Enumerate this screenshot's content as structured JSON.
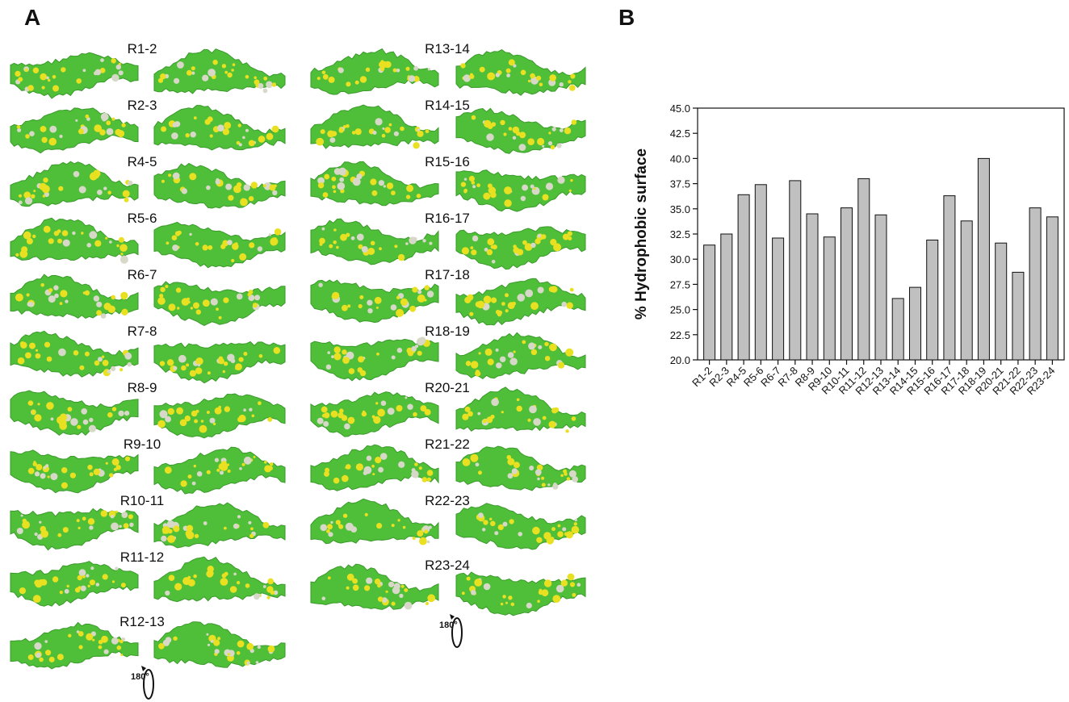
{
  "panel_a": {
    "letter": "A",
    "left_column_labels": [
      "R1-2",
      "R2-3",
      "R4-5",
      "R5-6",
      "R6-7",
      "R7-8",
      "R8-9",
      "R9-10",
      "R10-11",
      "R11-12",
      "R12-13"
    ],
    "right_column_labels": [
      "R13-14",
      "R14-15",
      "R15-16",
      "R16-17",
      "R17-18",
      "R18-19",
      "R20-21",
      "R21-22",
      "R22-23",
      "R23-24"
    ],
    "rotation_label": "180°",
    "colors": {
      "surface": "#4fbf3a",
      "hydrophobic": "#e8e020",
      "neutral": "#d8d8c8"
    }
  },
  "chart_data": {
    "panel_letter": "B",
    "type": "bar",
    "categories": [
      "R1-2",
      "R2-3",
      "R4-5",
      "R5-6",
      "R6-7",
      "R7-8",
      "R8-9",
      "R9-10",
      "R10-11",
      "R11-12",
      "R12-13",
      "R13-14",
      "R14-15",
      "R15-16",
      "R16-17",
      "R17-18",
      "R18-19",
      "R20-21",
      "R21-22",
      "R22-23",
      "R23-24"
    ],
    "values": [
      31.4,
      32.5,
      36.4,
      37.4,
      32.1,
      37.8,
      34.5,
      32.2,
      35.1,
      38.0,
      34.4,
      26.1,
      27.2,
      31.9,
      36.3,
      33.8,
      40.0,
      31.6,
      28.7,
      35.1,
      34.2
    ],
    "title": "",
    "xlabel": "",
    "ylabel": "% Hydrophobic surface",
    "ylim": [
      20.0,
      45.0
    ],
    "yticks": [
      "20.0",
      "22.5",
      "25.0",
      "27.5",
      "30.0",
      "32.5",
      "35.0",
      "37.5",
      "40.0",
      "42.5",
      "45.0"
    ],
    "grid": false,
    "bar_color": "#c0c0c0"
  }
}
